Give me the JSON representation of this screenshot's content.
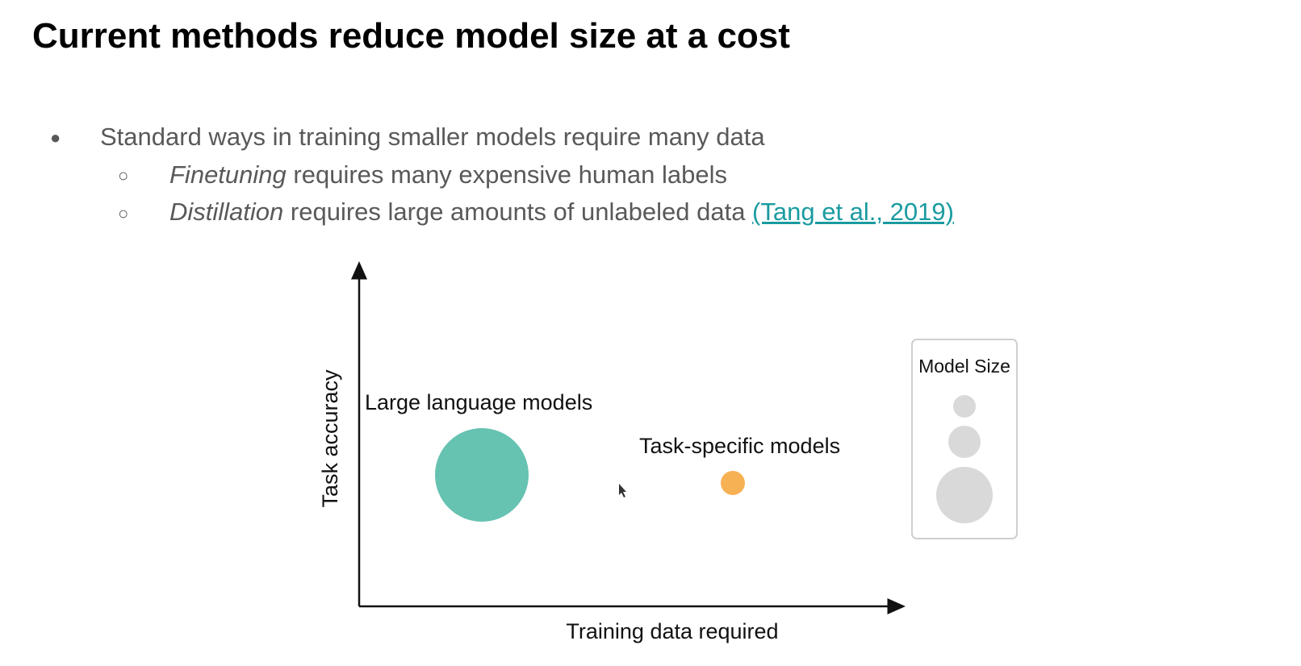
{
  "slide": {
    "title": "Current methods reduce model size at a cost"
  },
  "bullets": {
    "main": "Standard ways in training smaller models require many data",
    "sub": [
      {
        "italic": "Finetuning",
        "rest": " requires many expensive human labels"
      },
      {
        "italic": "Distillation",
        "rest": " requires large amounts of unlabeled data ",
        "link": "(Tang et al., 2019)"
      }
    ]
  },
  "diagram": {
    "y_axis_label": "Task accuracy",
    "x_axis_label": "Training data required",
    "llm_label": "Large language models",
    "tsm_label": "Task-specific models",
    "legend_title": "Model Size",
    "colors": {
      "llm": "#66c2b1",
      "tsm": "#f7b155",
      "legend_circles": "#d9d9d9",
      "link": "#1a9ba0"
    }
  }
}
